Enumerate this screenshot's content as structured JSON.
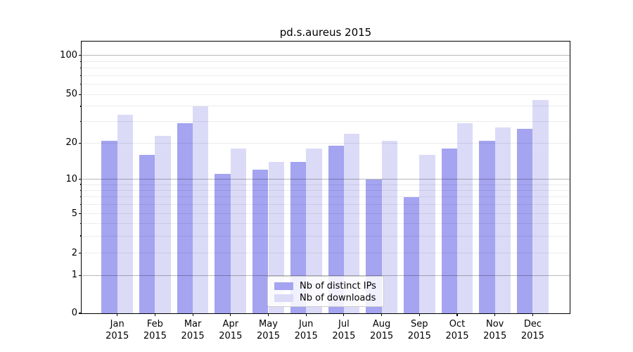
{
  "title": "pd.s.aureus 2015",
  "chart_data": {
    "type": "bar",
    "title": "pd.s.aureus 2015",
    "year": "2015",
    "months": [
      "Jan",
      "Feb",
      "Mar",
      "Apr",
      "May",
      "Jun",
      "Jul",
      "Aug",
      "Sep",
      "Oct",
      "Nov",
      "Dec"
    ],
    "categories": [
      "Jan 2015",
      "Feb 2015",
      "Mar 2015",
      "Apr 2015",
      "May 2015",
      "Jun 2015",
      "Jul 2015",
      "Aug 2015",
      "Sep 2015",
      "Oct 2015",
      "Nov 2015",
      "Dec 2015"
    ],
    "series": [
      {
        "name": "Nb of distinct IPs",
        "color": "#a4a4f1",
        "values": [
          21,
          16,
          29,
          11,
          12,
          14,
          19,
          10,
          7,
          18,
          21,
          26
        ]
      },
      {
        "name": "Nb of downloads",
        "color": "#dbdbf8",
        "values": [
          34,
          23,
          40,
          18,
          14,
          18,
          24,
          21,
          16,
          29,
          27,
          45
        ]
      }
    ],
    "yscale": "symlog",
    "yticks": [
      0,
      1,
      2,
      5,
      10,
      20,
      50,
      100
    ],
    "minor_gridlines": [
      2,
      3,
      4,
      5,
      6,
      7,
      8,
      9,
      20,
      30,
      40,
      50,
      60,
      70,
      80,
      90
    ],
    "major_gridlines": [
      1,
      10,
      100
    ],
    "ylim": [
      0,
      130
    ],
    "grid": "horizontal",
    "legend_position": "lower-center",
    "colors": {
      "axis": "#000000",
      "grid_minor": "#ececec",
      "grid_major": "#b8b8b8",
      "background": "#ffffff"
    }
  }
}
